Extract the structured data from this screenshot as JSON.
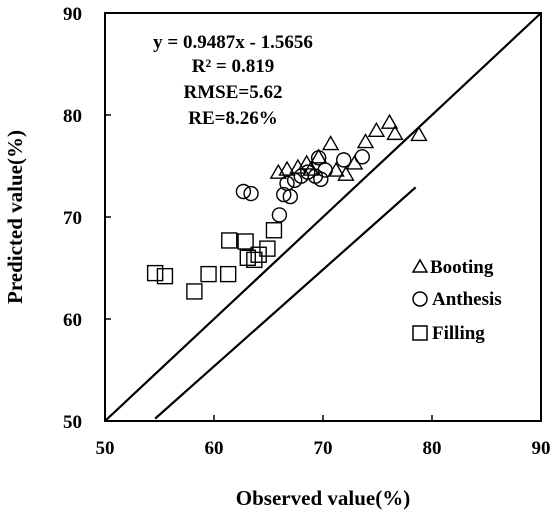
{
  "chart_data": {
    "type": "scatter",
    "xlabel": "Observed value(%)",
    "ylabel": "Predicted value(%)",
    "xlim": [
      50,
      90
    ],
    "ylim": [
      50,
      90
    ],
    "xticks": [
      "50",
      "60",
      "70",
      "80",
      "90"
    ],
    "yticks": [
      "50",
      "60",
      "70",
      "80",
      "90"
    ],
    "grid": false,
    "legend_position": "right-middle",
    "annotations": [
      "y = 0.9487x - 1.5656",
      "R² = 0.819",
      "RMSE=5.62",
      "RE=8.26%"
    ],
    "regression_line": {
      "slope": 0.9487,
      "intercept": -1.5656,
      "x_range": [
        54.6,
        78.5
      ]
    },
    "reference_line": {
      "label": "",
      "from": [
        50,
        50
      ],
      "to": [
        90,
        90
      ]
    },
    "series": [
      {
        "name": "Booting",
        "marker": "triangle",
        "points": [
          [
            65.9,
            74.3
          ],
          [
            66.7,
            74.6
          ],
          [
            67.7,
            74.8
          ],
          [
            68.5,
            75.2
          ],
          [
            68.9,
            74.6
          ],
          [
            69.6,
            75.8
          ],
          [
            70.7,
            77.1
          ],
          [
            71.2,
            74.5
          ],
          [
            72.1,
            74.1
          ],
          [
            72.9,
            75.2
          ],
          [
            73.9,
            77.3
          ],
          [
            74.9,
            78.4
          ],
          [
            76.1,
            79.2
          ],
          [
            76.6,
            78.1
          ],
          [
            78.8,
            78.0
          ]
        ]
      },
      {
        "name": "Anthesis",
        "marker": "circle",
        "points": [
          [
            62.7,
            72.5
          ],
          [
            63.4,
            72.3
          ],
          [
            66.0,
            70.2
          ],
          [
            66.4,
            72.2
          ],
          [
            67.0,
            72.0
          ],
          [
            67.4,
            73.6
          ],
          [
            68.0,
            74.0
          ],
          [
            68.6,
            74.4
          ],
          [
            69.3,
            74.0
          ],
          [
            69.8,
            73.7
          ],
          [
            70.2,
            74.6
          ],
          [
            69.6,
            75.8
          ],
          [
            71.9,
            75.6
          ],
          [
            73.6,
            75.9
          ],
          [
            66.7,
            73.3
          ]
        ]
      },
      {
        "name": "Filling",
        "marker": "square",
        "points": [
          [
            54.6,
            64.5
          ],
          [
            55.5,
            64.2
          ],
          [
            58.2,
            62.7
          ],
          [
            59.5,
            64.4
          ],
          [
            61.3,
            64.4
          ],
          [
            61.4,
            67.7
          ],
          [
            62.9,
            67.6
          ],
          [
            63.1,
            66.0
          ],
          [
            63.7,
            65.8
          ],
          [
            64.1,
            66.3
          ],
          [
            64.9,
            66.9
          ],
          [
            65.5,
            68.7
          ]
        ]
      }
    ]
  }
}
